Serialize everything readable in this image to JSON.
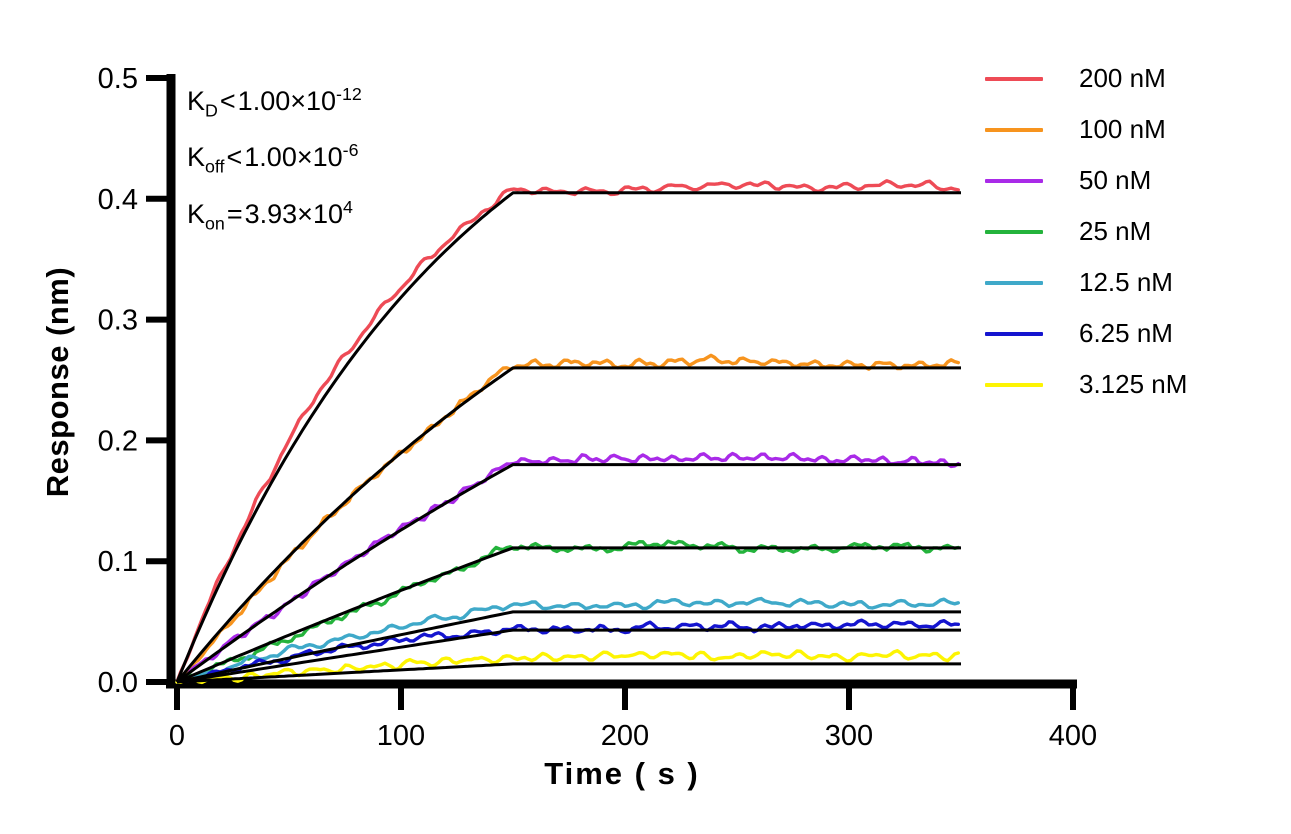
{
  "figure": {
    "background": "#FFFFFF",
    "axis_color": "#000000"
  },
  "annotation": {
    "lines": [
      {
        "base": "K",
        "sub": "D",
        "rel": "<",
        "mantissa": "1.00×10",
        "exponent": "-12"
      },
      {
        "base": "K",
        "sub": "off",
        "rel": "<",
        "mantissa": "1.00×10",
        "exponent": "-6"
      },
      {
        "base": "K",
        "sub": "on",
        "rel": "=",
        "mantissa": "3.93×10",
        "exponent": "4"
      }
    ]
  },
  "chart_data": {
    "type": "line",
    "title": "",
    "xlabel": "Time ( s )",
    "ylabel": "Response (nm)",
    "xlim": [
      0,
      400
    ],
    "ylim": [
      0,
      0.5
    ],
    "xticks": [
      "0",
      "100",
      "200",
      "300",
      "400"
    ],
    "yticks": [
      "0.0",
      "0.1",
      "0.2",
      "0.3",
      "0.4",
      "0.5"
    ],
    "grid": false,
    "legend_position": "right-outside",
    "association_end_s": 150,
    "curve_end_s": 350,
    "kon_per_M_s": 39300,
    "fit_color": "#000000",
    "series": [
      {
        "label": "200 nM",
        "conc_nM": 200,
        "color": "#EE4B56",
        "plateau_nm": 0.405,
        "data_offset_nm": 0.004,
        "assoc_bias_nm": 0.008
      },
      {
        "label": "100 nM",
        "conc_nM": 100,
        "color": "#F7941E",
        "plateau_nm": 0.26,
        "data_offset_nm": 0.005,
        "assoc_bias_nm": -0.008
      },
      {
        "label": "50 nM",
        "conc_nM": 50,
        "color": "#A92AE8",
        "plateau_nm": 0.18,
        "data_offset_nm": 0.003,
        "assoc_bias_nm": -0.004
      },
      {
        "label": "25 nM",
        "conc_nM": 25,
        "color": "#24B33C",
        "plateau_nm": 0.111,
        "data_offset_nm": 0.002,
        "assoc_bias_nm": -0.003
      },
      {
        "label": "12.5 nM",
        "conc_nM": 12.5,
        "color": "#3FA9C9",
        "plateau_nm": 0.058,
        "data_offset_nm": 0.006,
        "assoc_bias_nm": -0.002
      },
      {
        "label": "6.25 nM",
        "conc_nM": 6.25,
        "color": "#1515CF",
        "plateau_nm": 0.043,
        "data_offset_nm": 0.002,
        "assoc_bias_nm": 0.002
      },
      {
        "label": "3.125 nM",
        "conc_nM": 3.125,
        "color": "#FDF403",
        "plateau_nm": 0.015,
        "data_offset_nm": 0.005,
        "assoc_bias_nm": 0.001
      }
    ]
  }
}
